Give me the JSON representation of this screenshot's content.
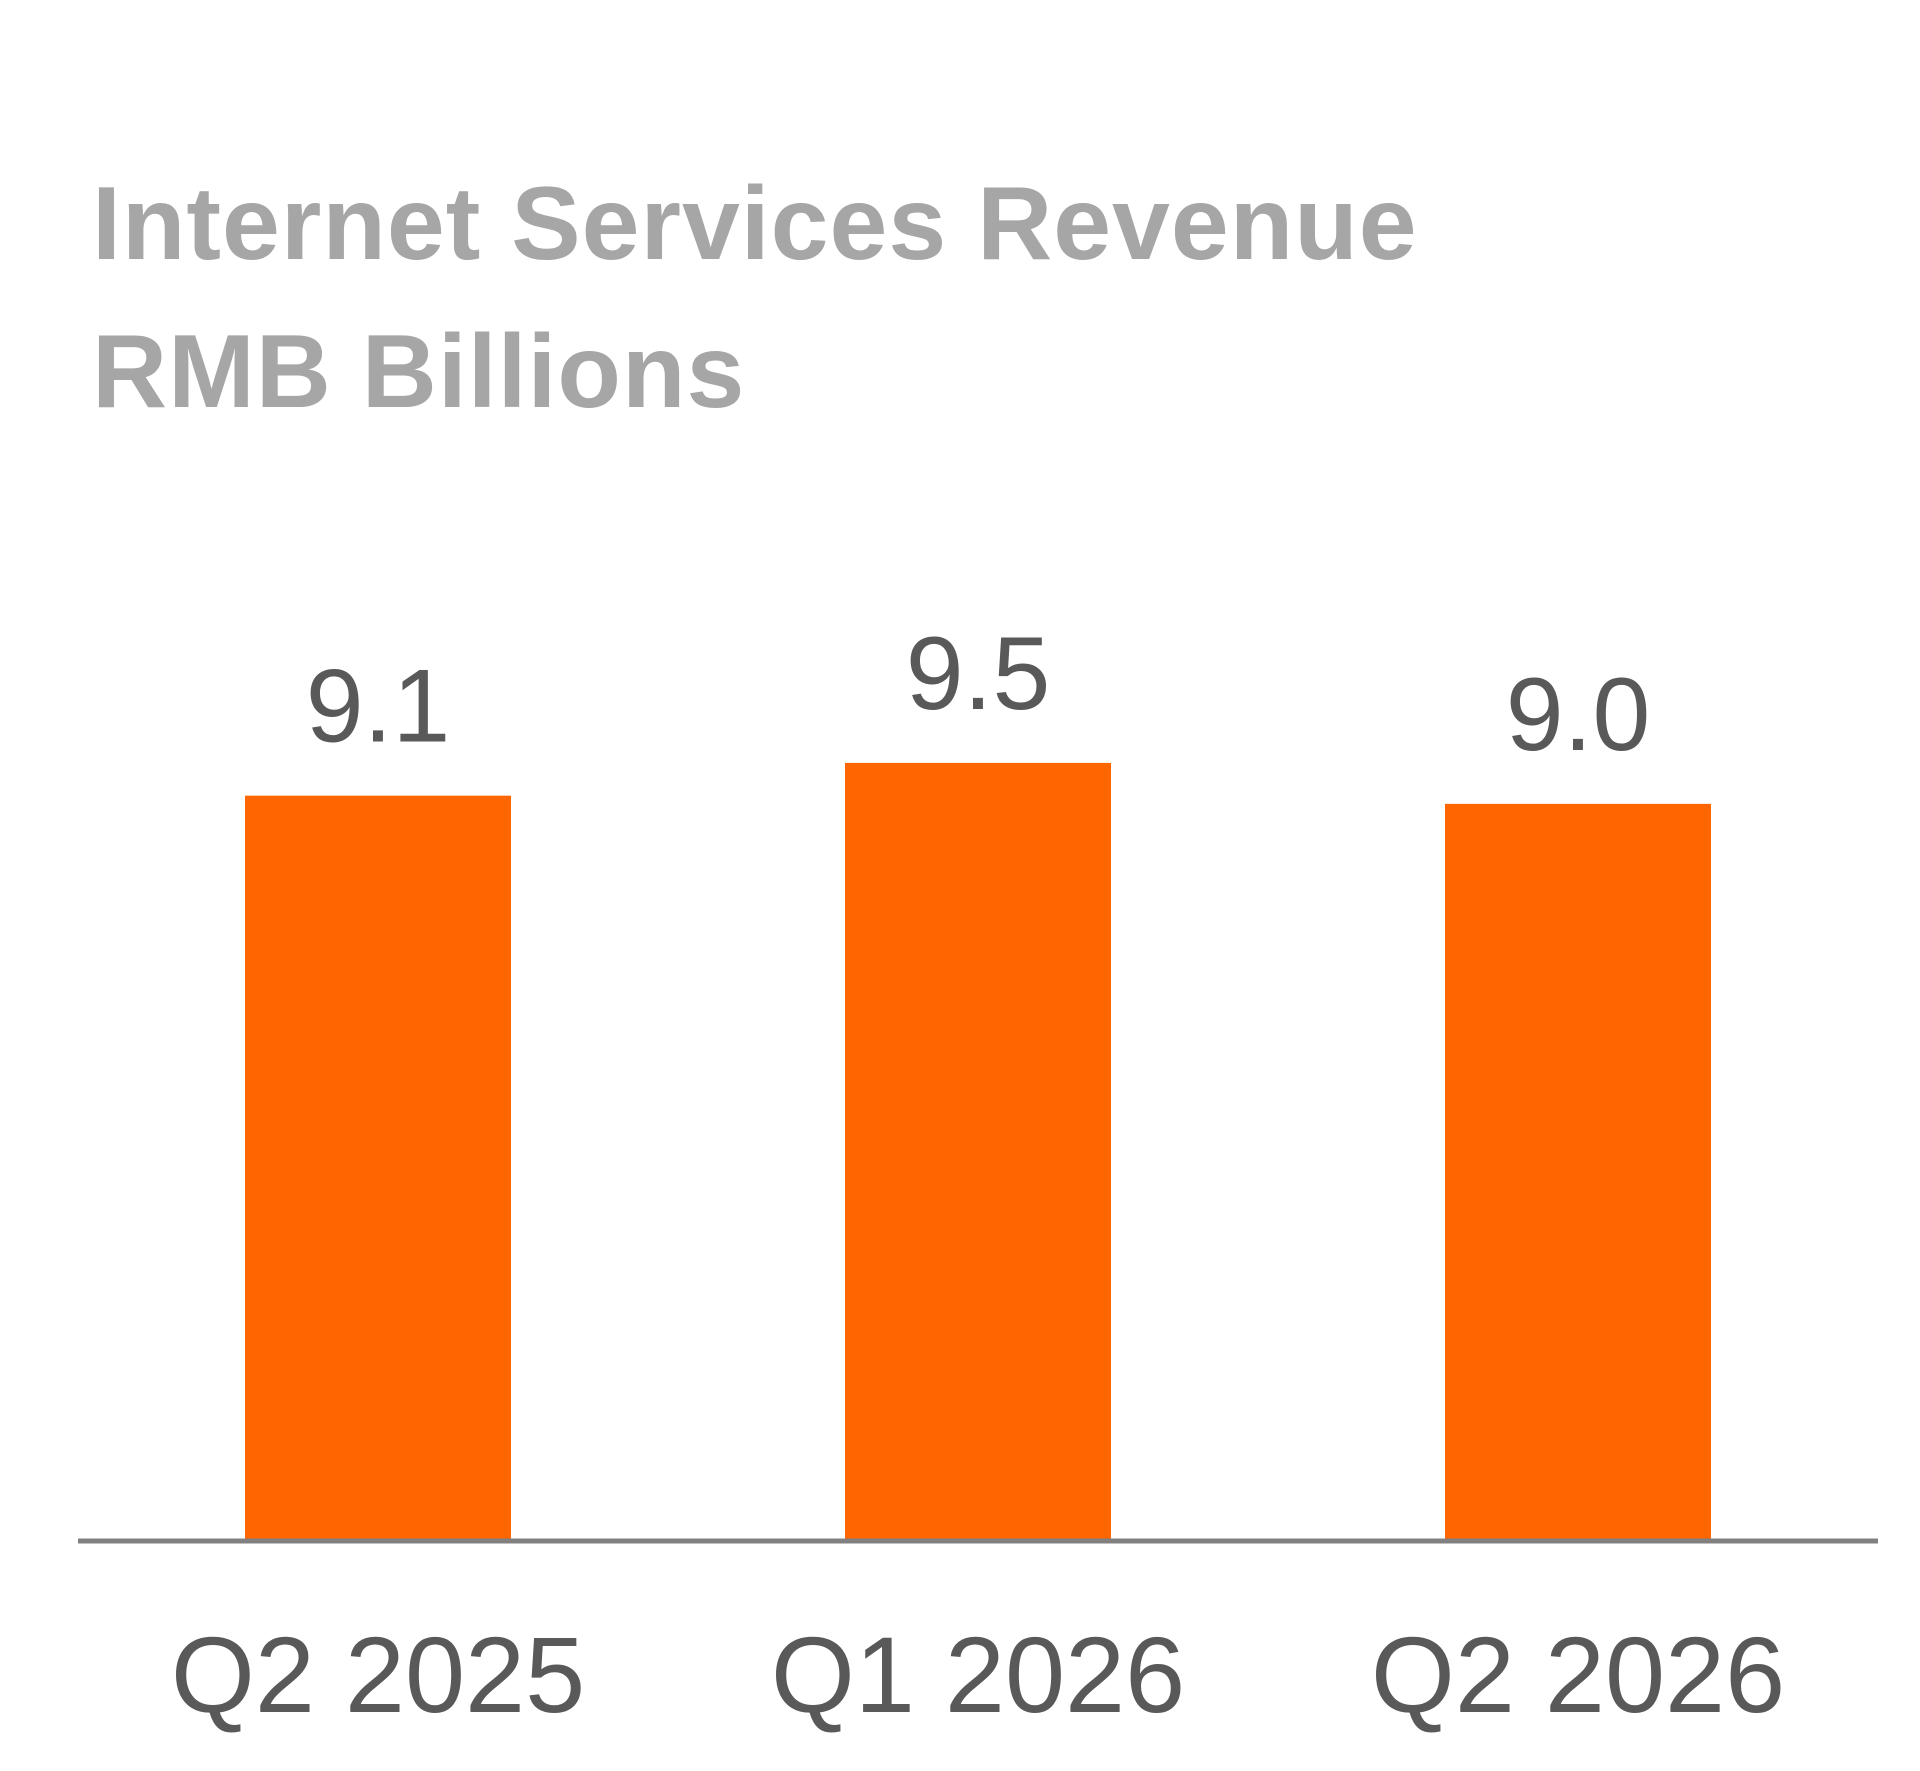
{
  "chart_data": {
    "type": "bar",
    "title": "Internet Services Revenue",
    "subtitle": "RMB Billions",
    "categories": [
      "Q2 2025",
      "Q1 2026",
      "Q2 2026"
    ],
    "values": [
      9.1,
      9.5,
      9.0
    ],
    "value_labels": [
      "9.1",
      "9.5",
      "9.0"
    ],
    "ylim": [
      0,
      10.5
    ],
    "grid": false,
    "legend": "none",
    "bar_color": "#ff6600",
    "axis_color": "#808080",
    "label_color": "#595959",
    "title_color": "#a6a6a6"
  }
}
